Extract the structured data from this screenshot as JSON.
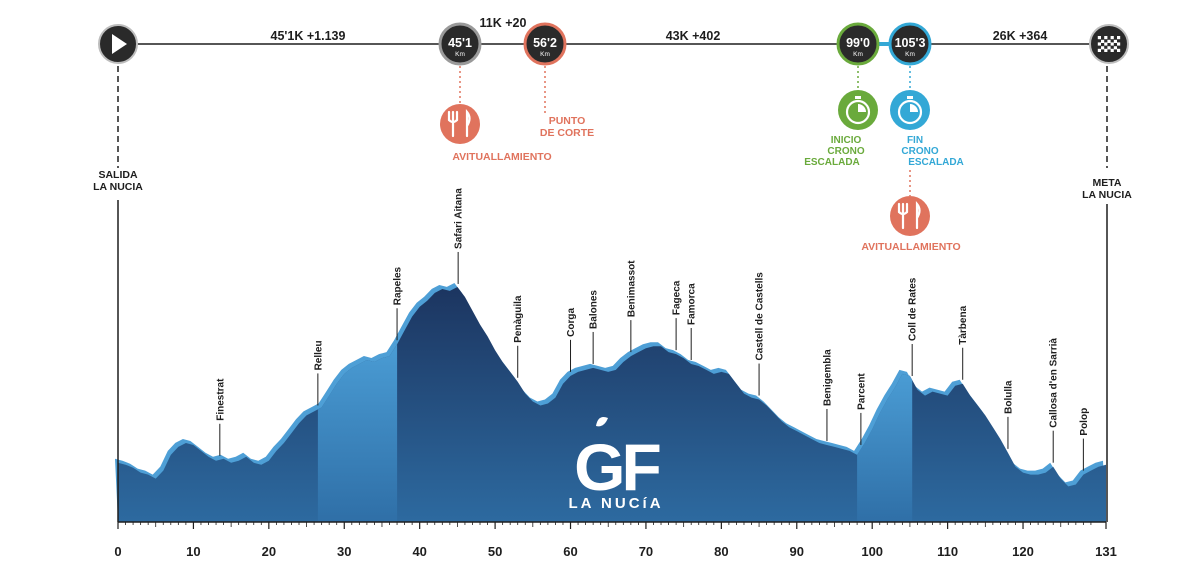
{
  "chart_data": {
    "type": "area",
    "x_unit": "km",
    "xlim": [
      0,
      131
    ],
    "x_ticks": [
      "0",
      "10",
      "20",
      "30",
      "40",
      "50",
      "60",
      "70",
      "80",
      "90",
      "100",
      "110",
      "120",
      "131"
    ],
    "profile": [
      [
        0,
        60
      ],
      [
        1,
        58
      ],
      [
        2,
        55
      ],
      [
        3,
        50
      ],
      [
        4,
        48
      ],
      [
        5,
        44
      ],
      [
        6,
        52
      ],
      [
        7,
        68
      ],
      [
        8,
        76
      ],
      [
        9,
        80
      ],
      [
        10,
        78
      ],
      [
        11,
        72
      ],
      [
        12,
        66
      ],
      [
        13,
        62
      ],
      [
        14,
        64
      ],
      [
        15,
        60
      ],
      [
        16,
        62
      ],
      [
        17,
        66
      ],
      [
        18,
        60
      ],
      [
        19,
        58
      ],
      [
        20,
        62
      ],
      [
        21,
        72
      ],
      [
        22,
        80
      ],
      [
        23,
        90
      ],
      [
        24,
        100
      ],
      [
        25,
        108
      ],
      [
        26,
        112
      ],
      [
        27,
        116
      ],
      [
        28,
        128
      ],
      [
        29,
        140
      ],
      [
        30,
        150
      ],
      [
        31,
        156
      ],
      [
        32,
        160
      ],
      [
        33,
        164
      ],
      [
        34,
        162
      ],
      [
        35,
        166
      ],
      [
        36,
        168
      ],
      [
        37,
        180
      ],
      [
        38,
        194
      ],
      [
        39,
        208
      ],
      [
        40,
        218
      ],
      [
        41,
        224
      ],
      [
        42,
        232
      ],
      [
        43,
        236
      ],
      [
        44,
        234
      ],
      [
        45,
        238
      ],
      [
        46,
        228
      ],
      [
        47,
        214
      ],
      [
        48,
        200
      ],
      [
        49,
        188
      ],
      [
        50,
        174
      ],
      [
        51,
        162
      ],
      [
        52,
        152
      ],
      [
        53,
        142
      ],
      [
        54,
        130
      ],
      [
        55,
        122
      ],
      [
        56,
        118
      ],
      [
        57,
        120
      ],
      [
        58,
        126
      ],
      [
        59,
        140
      ],
      [
        60,
        148
      ],
      [
        61,
        152
      ],
      [
        62,
        154
      ],
      [
        63,
        156
      ],
      [
        64,
        154
      ],
      [
        65,
        152
      ],
      [
        66,
        154
      ],
      [
        67,
        162
      ],
      [
        68,
        168
      ],
      [
        69,
        172
      ],
      [
        70,
        176
      ],
      [
        71,
        178
      ],
      [
        72,
        178
      ],
      [
        73,
        172
      ],
      [
        74,
        170
      ],
      [
        75,
        166
      ],
      [
        76,
        160
      ],
      [
        77,
        158
      ],
      [
        78,
        154
      ],
      [
        79,
        150
      ],
      [
        80,
        152
      ],
      [
        81,
        150
      ],
      [
        82,
        140
      ],
      [
        83,
        130
      ],
      [
        84,
        126
      ],
      [
        85,
        124
      ],
      [
        86,
        118
      ],
      [
        87,
        110
      ],
      [
        88,
        102
      ],
      [
        89,
        96
      ],
      [
        90,
        92
      ],
      [
        91,
        88
      ],
      [
        92,
        84
      ],
      [
        93,
        80
      ],
      [
        94,
        78
      ],
      [
        95,
        76
      ],
      [
        96,
        74
      ],
      [
        97,
        72
      ],
      [
        98,
        68
      ],
      [
        99,
        80
      ],
      [
        100,
        94
      ],
      [
        101,
        110
      ],
      [
        102,
        124
      ],
      [
        103,
        136
      ],
      [
        104,
        150
      ],
      [
        105,
        148
      ],
      [
        106,
        134
      ],
      [
        107,
        128
      ],
      [
        108,
        132
      ],
      [
        109,
        130
      ],
      [
        110,
        128
      ],
      [
        111,
        138
      ],
      [
        112,
        140
      ],
      [
        113,
        128
      ],
      [
        114,
        118
      ],
      [
        115,
        108
      ],
      [
        116,
        96
      ],
      [
        117,
        84
      ],
      [
        118,
        70
      ],
      [
        119,
        56
      ],
      [
        120,
        50
      ],
      [
        121,
        48
      ],
      [
        122,
        48
      ],
      [
        123,
        50
      ],
      [
        124,
        56
      ],
      [
        125,
        44
      ],
      [
        126,
        36
      ],
      [
        127,
        38
      ],
      [
        128,
        48
      ],
      [
        129,
        52
      ],
      [
        130,
        56
      ],
      [
        131,
        58
      ]
    ],
    "light_sections": [
      [
        26.5,
        37
      ],
      [
        98,
        105.3
      ]
    ],
    "waypoints": [
      {
        "km": 13.5,
        "name": "Finestrat"
      },
      {
        "km": 26.5,
        "name": "Relleu"
      },
      {
        "km": 37,
        "name": "Rapeles"
      },
      {
        "km": 45.1,
        "name": "Safari Aitana"
      },
      {
        "km": 53,
        "name": "Penàguila"
      },
      {
        "km": 60,
        "name": "Corga"
      },
      {
        "km": 63,
        "name": "Balones"
      },
      {
        "km": 68,
        "name": "Benimassot"
      },
      {
        "km": 74,
        "name": "Fageca"
      },
      {
        "km": 76,
        "name": "Famorca"
      },
      {
        "km": 85,
        "name": "Castell de Castells"
      },
      {
        "km": 94,
        "name": "Benigembla"
      },
      {
        "km": 98.5,
        "name": "Parcent"
      },
      {
        "km": 105.3,
        "name": "Coll de Rates"
      },
      {
        "km": 112,
        "name": "Tàrbena"
      },
      {
        "km": 118,
        "name": "Bolulla"
      },
      {
        "km": 124,
        "name": "Callosa d'en Sarrià"
      },
      {
        "km": 128,
        "name": "Polop"
      }
    ]
  },
  "route": {
    "segments": [
      "45'1K  +1.139",
      "11K  +20",
      "43K  +402",
      "26K  +364"
    ],
    "nodes": [
      {
        "value": "45'1",
        "unit": "Km",
        "ring": "#9a9a9a"
      },
      {
        "value": "56'2",
        "unit": "Km",
        "ring": "#e0735d"
      },
      {
        "value": "99'0",
        "unit": "Km",
        "ring": "#6aaa3c"
      },
      {
        "value": "105'3",
        "unit": "Km",
        "ring": "#33a8d6"
      }
    ],
    "start_label": [
      "SALIDA",
      "LA NUCIA"
    ],
    "finish_label": [
      "META",
      "LA NUCIA"
    ]
  },
  "events": {
    "feed1": "AVITUALLAMIENTO",
    "cut": [
      "PUNTO",
      "DE CORTE"
    ],
    "crono_start": [
      "INICIO",
      "CRONO",
      "ESCALADA"
    ],
    "crono_end": [
      "FIN",
      "CRONO",
      "ESCALADA"
    ],
    "feed2": "AVITUALLAMIENTO"
  },
  "logo": {
    "mark": "GF",
    "sub": "LA NUCíA"
  },
  "colors": {
    "dark_fill": "#1f3f6b",
    "mid_fill": "#2b5f94",
    "light_fill": "#3a8cc4",
    "edge": "#4e9fd6",
    "red": "#e0735d",
    "green": "#6aaa3c",
    "blue": "#33a8d6",
    "node_bg": "#2a2a2a"
  }
}
